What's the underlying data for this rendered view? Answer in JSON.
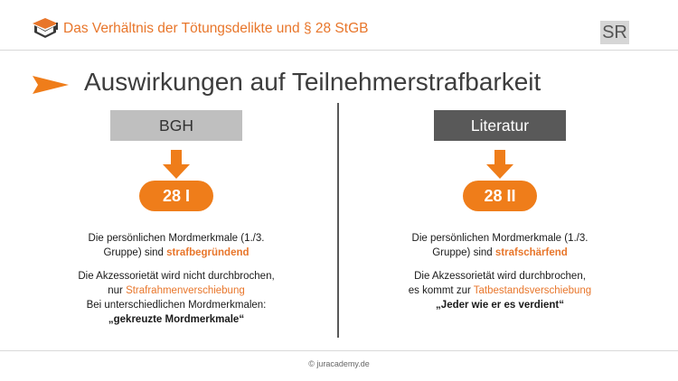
{
  "header": {
    "title": "Das Verhältnis der Tötungsdelikte und § 28 StGB",
    "badge": "SR"
  },
  "slide": {
    "title": "Auswirkungen auf Teilnehmerstrafbarkeit"
  },
  "left": {
    "heading": "BGH",
    "pill": "28 I",
    "p1_line1": "Die persönlichen Mordmerkmale (1./3.",
    "p1_line2_pre": "Gruppe) sind ",
    "p1_line2_hl": "strafbegründend",
    "p2_line1": "Die Akzessorietät wird nicht durchbrochen,",
    "p2_line2_pre": "nur ",
    "p2_line2_hl": "Strafrahmenverschiebung",
    "p2_line3": "Bei unterschiedlichen Mordmerkmalen:",
    "p2_line4": "„gekreuzte Mordmerkmale“"
  },
  "right": {
    "heading": "Literatur",
    "pill": "28 II",
    "p1_line1": "Die persönlichen Mordmerkmale (1./3.",
    "p1_line2_pre": "Gruppe) sind ",
    "p1_line2_hl": "strafschärfend",
    "p2_line1": "Die Akzessorietät wird durchbrochen,",
    "p2_line2_pre": "es kommt zur ",
    "p2_line2_hl": "Tatbestandsverschiebung",
    "p2_line3": "„Jeder wie er es verdient“"
  },
  "footer": {
    "copyright": "© juracademy.de"
  },
  "colors": {
    "accent": "#ef7d1a",
    "left_heading_bg": "#bfbfbf",
    "right_heading_bg": "#595959"
  }
}
